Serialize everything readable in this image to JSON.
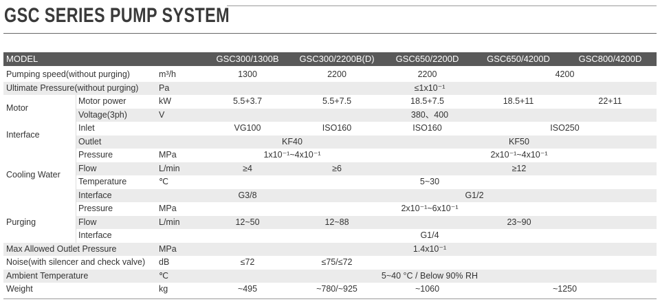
{
  "header": {
    "title": "GSC SERIES PUMP SYSTEM"
  },
  "table": {
    "model_label": "MODEL",
    "columns": [
      "GSC300/1300B",
      "GSC300/2200B(D)",
      "GSC650/2200D",
      "GSC650/4200D",
      "GSC800/4200D"
    ],
    "rows": [
      {
        "label": "Pumping speed(without purging)",
        "unit": "m³/h",
        "values": [
          "1300",
          "2200",
          "2200",
          "4200"
        ]
      },
      {
        "label": "Ultimate Pressure(without purging)",
        "unit": "Pa",
        "values": [
          "≤1x10⁻¹"
        ]
      },
      {
        "group": "Motor",
        "items": [
          {
            "label": "Motor power",
            "unit": "kW",
            "values": [
              "5.5+3.7",
              "5.5+7.5",
              "18.5+7.5",
              "18.5+11",
              "22+11"
            ]
          },
          {
            "label": "Voltage(3ph)",
            "unit": "V",
            "values": [
              "380、400"
            ]
          }
        ]
      },
      {
        "group": "Interface",
        "items": [
          {
            "label": "Inlet",
            "values": [
              "VG100",
              "ISO160",
              "ISO160",
              "ISO250"
            ]
          },
          {
            "label": "Outlet",
            "values": [
              "KF40",
              "KF50"
            ]
          }
        ]
      },
      {
        "group": "Cooling Water",
        "items": [
          {
            "label": "Pressure",
            "unit": "MPa",
            "values": [
              "1x10⁻¹~4x10⁻¹",
              "2x10⁻¹~4x10⁻¹"
            ]
          },
          {
            "label": "Flow",
            "unit": "L/min",
            "values": [
              "≥4",
              "≥6",
              "≥12"
            ]
          },
          {
            "label": "Temperature",
            "unit": "℃",
            "values": [
              "5~30"
            ]
          },
          {
            "label": "Interface",
            "values": [
              "G3/8",
              "G1/2"
            ]
          }
        ]
      },
      {
        "group": "Purging",
        "items": [
          {
            "label": "Pressure",
            "unit": "MPa",
            "values": [
              "2x10⁻¹~6x10⁻¹"
            ]
          },
          {
            "label": "Flow",
            "unit": "L/min",
            "values": [
              "12~50",
              "12~88",
              "23~90"
            ]
          },
          {
            "label": "Interface",
            "values": [
              "G1/4"
            ]
          }
        ]
      },
      {
        "label": "Max Allowed Outlet Pressure",
        "unit": "MPa",
        "values": [
          "1.4x10⁻¹"
        ]
      },
      {
        "label": "Noise(with silencer and check valve)",
        "unit": "dB",
        "values": [
          "≤72",
          "≤75/≤72"
        ]
      },
      {
        "label": "Ambient Temperature",
        "unit": "℃",
        "values": [
          "5~40 °C / Below 90% RH"
        ]
      },
      {
        "label": "Weight",
        "unit": "kg",
        "values": [
          "~495",
          "~780/~925",
          "~1060",
          "~1250"
        ]
      }
    ]
  }
}
